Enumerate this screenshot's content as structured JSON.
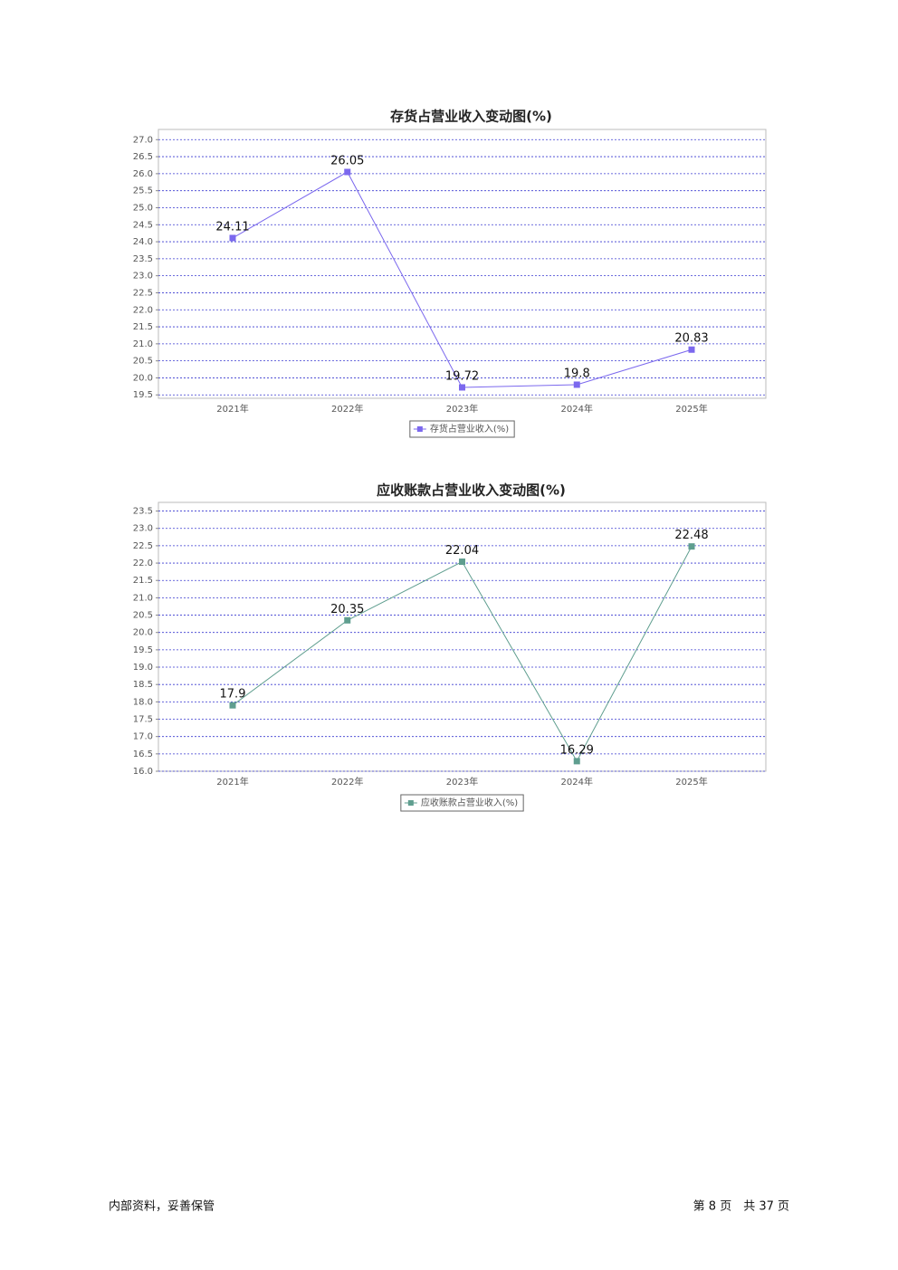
{
  "chart_data": [
    {
      "type": "line",
      "title": "存货占营业收入变动图(%)",
      "categories": [
        "2021年",
        "2022年",
        "2023年",
        "2024年",
        "2025年"
      ],
      "series": [
        {
          "name": "存货占营业收入(%)",
          "color": "#7b68ee",
          "values": [
            24.11,
            26.05,
            19.72,
            19.8,
            20.83
          ]
        }
      ],
      "ylim": [
        19.4,
        27.3
      ],
      "yticks": [
        19.5,
        {
          "value": 20,
          "label": "20.0"
        },
        20.5,
        {
          "value": 21,
          "label": "21.0"
        },
        21.5,
        {
          "value": 22,
          "label": "22.0"
        },
        22.5,
        {
          "value": 23,
          "label": "23.0"
        },
        23.5,
        {
          "value": 24,
          "label": "24.0"
        },
        24.5,
        {
          "value": 25,
          "label": "25.0"
        },
        25.5,
        {
          "value": 26,
          "label": "26.0"
        },
        26.5,
        {
          "value": 27,
          "label": "27.0"
        }
      ],
      "grid": true,
      "legend": "bottom"
    },
    {
      "type": "line",
      "title": "应收账款占营业收入变动图(%)",
      "categories": [
        "2021年",
        "2022年",
        "2023年",
        "2024年",
        "2025年"
      ],
      "series": [
        {
          "name": "应收账款占营业收入(%)",
          "color": "#5f9e8f",
          "values": [
            17.9,
            20.35,
            22.04,
            16.29,
            22.48
          ]
        }
      ],
      "ylim": [
        16.0,
        23.75
      ],
      "yticks": [
        {
          "value": 16,
          "label": "16.0"
        },
        16.5,
        {
          "value": 17,
          "label": "17.0"
        },
        17.5,
        {
          "value": 18,
          "label": "18.0"
        },
        18.5,
        {
          "value": 19,
          "label": "19.0"
        },
        19.5,
        {
          "value": 20,
          "label": "20.0"
        },
        20.5,
        {
          "value": 21,
          "label": "21.0"
        },
        21.5,
        {
          "value": 22,
          "label": "22.0"
        },
        22.5,
        {
          "value": 23,
          "label": "23.0"
        },
        23.5
      ],
      "grid": true,
      "legend": "bottom"
    }
  ],
  "footer": {
    "left": "内部资料，妥善保管",
    "right": "第 8 页　共 37 页"
  }
}
